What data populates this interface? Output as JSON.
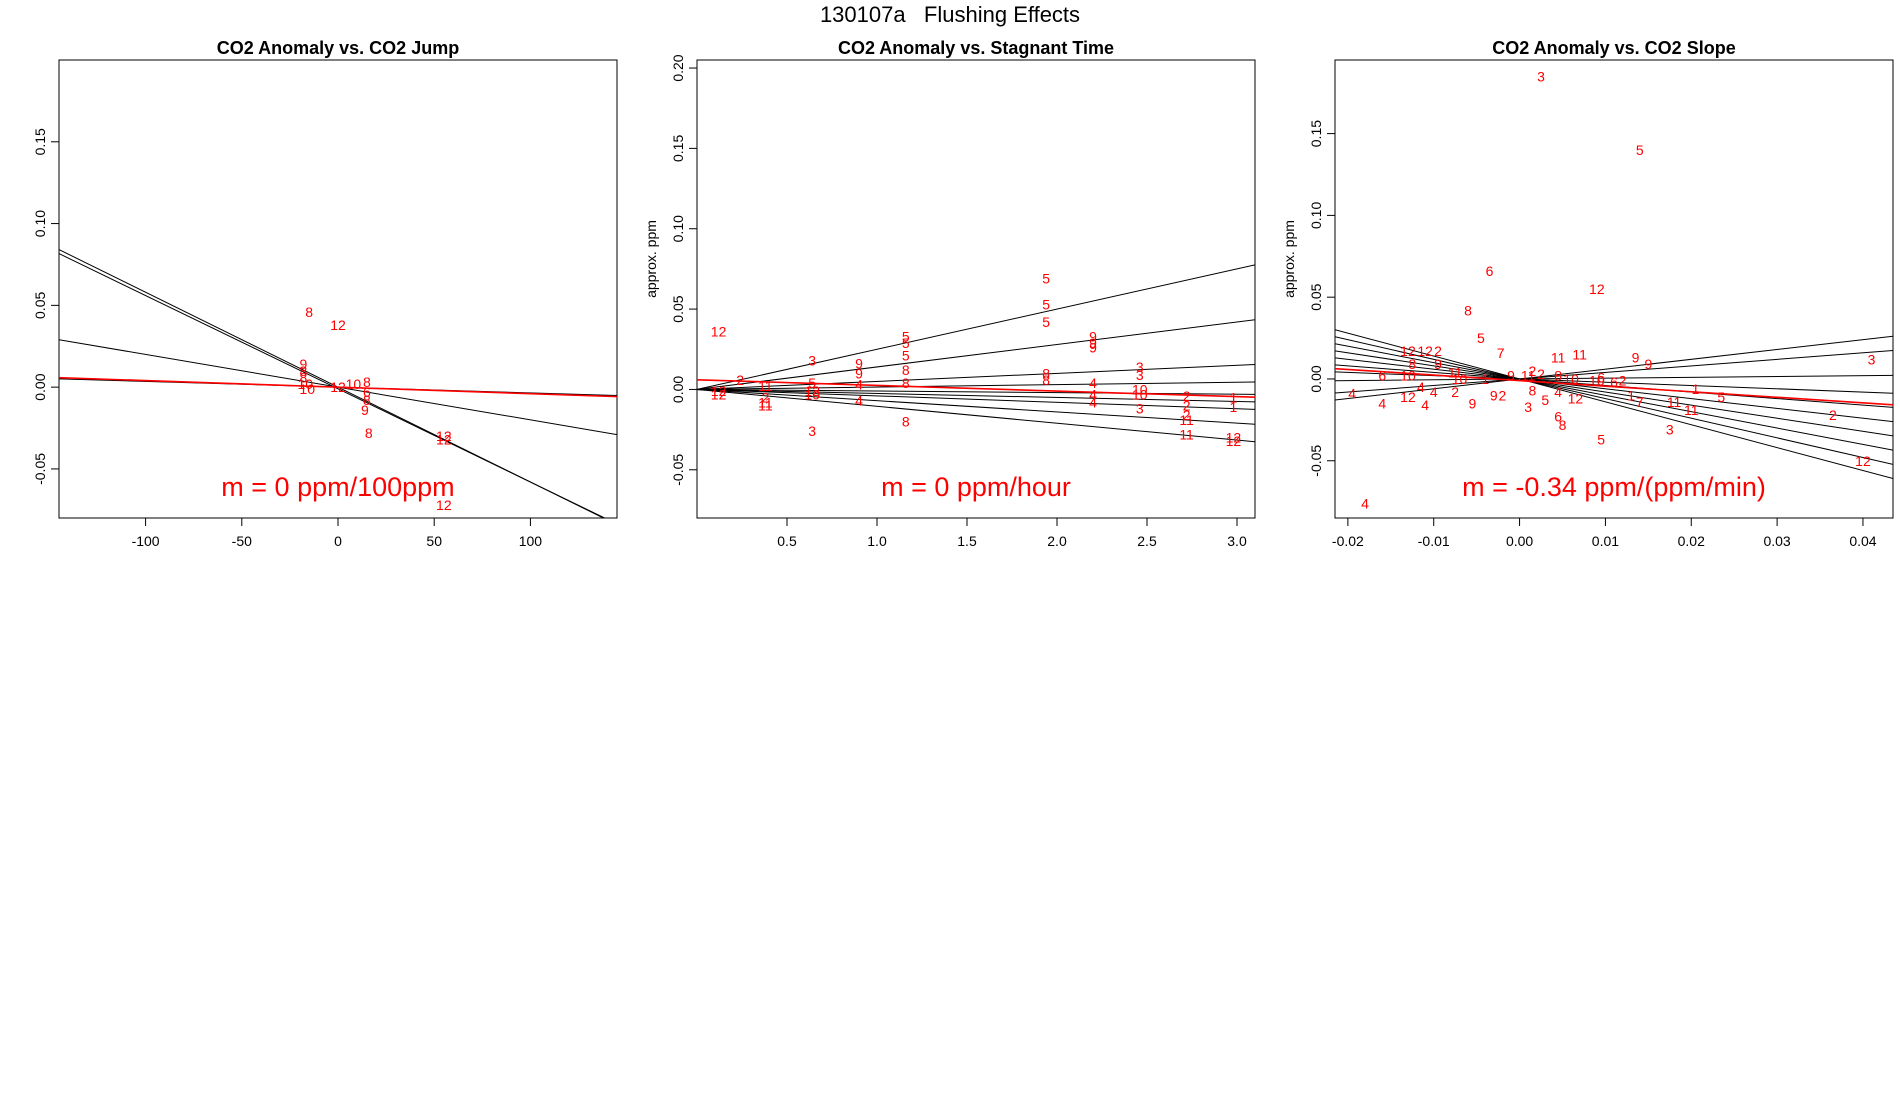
{
  "figure": {
    "title": "130107a   Flushing Effects"
  },
  "chart_data": [
    {
      "type": "scatter",
      "title": "CO2 Anomaly vs. CO2 Jump",
      "xlabel": "",
      "ylabel": "",
      "xlim": [
        -145,
        145
      ],
      "ylim": [
        -0.08,
        0.2
      ],
      "xticks": [
        -100,
        -50,
        0,
        50,
        100
      ],
      "yticks": [
        -0.05,
        0.0,
        0.05,
        0.1,
        0.15
      ],
      "annotation": "m = 0 ppm/100ppm",
      "lines": [
        {
          "slope": -0.00058,
          "intercept": 0.0,
          "color": "#000000"
        },
        {
          "slope": -0.00057,
          "intercept": -0.001,
          "color": "#000000"
        },
        {
          "slope": -0.0002,
          "intercept": 0.0,
          "color": "#000000"
        },
        {
          "slope": -3.5e-05,
          "intercept": 0.0,
          "color": "#000000"
        },
        {
          "slope": -4e-05,
          "intercept": 0.0,
          "color": "#ff0000"
        }
      ],
      "points": [
        {
          "x": -15,
          "y": 0.046,
          "label": "8"
        },
        {
          "x": 0,
          "y": 0.038,
          "label": "12"
        },
        {
          "x": -18,
          "y": 0.014,
          "label": "9"
        },
        {
          "x": -18,
          "y": 0.01,
          "label": "8"
        },
        {
          "x": -18,
          "y": 0.006,
          "label": "8"
        },
        {
          "x": -17,
          "y": 0.002,
          "label": "10"
        },
        {
          "x": -16,
          "y": -0.001,
          "label": "10"
        },
        {
          "x": 0,
          "y": 0.0,
          "label": "12"
        },
        {
          "x": 8,
          "y": 0.002,
          "label": "10"
        },
        {
          "x": 15,
          "y": 0.003,
          "label": "8"
        },
        {
          "x": 15,
          "y": -0.003,
          "label": "6"
        },
        {
          "x": 15,
          "y": -0.008,
          "label": "8"
        },
        {
          "x": 14,
          "y": -0.014,
          "label": "9"
        },
        {
          "x": 16,
          "y": -0.028,
          "label": "8"
        },
        {
          "x": 55,
          "y": -0.03,
          "label": "12"
        },
        {
          "x": 55,
          "y": -0.032,
          "label": "12"
        },
        {
          "x": 55,
          "y": -0.072,
          "label": "12"
        }
      ]
    },
    {
      "type": "scatter",
      "title": "CO2 Anomaly vs. Stagnant Time",
      "xlabel": "",
      "ylabel": "approx. ppm",
      "xlim": [
        0.0,
        3.1
      ],
      "ylim": [
        -0.08,
        0.205
      ],
      "xticks": [
        0.5,
        1.0,
        1.5,
        2.0,
        2.5,
        3.0
      ],
      "yticks": [
        -0.05,
        0.0,
        0.05,
        0.1,
        0.15,
        0.2
      ],
      "annotation": "m = 0 ppm/hour",
      "lines": [
        {
          "slope": 0.025,
          "intercept": 0.0,
          "color": "#000000"
        },
        {
          "slope": 0.014,
          "intercept": 0.0,
          "color": "#000000"
        },
        {
          "slope": 0.005,
          "intercept": 0.0,
          "color": "#000000"
        },
        {
          "slope": 0.0015,
          "intercept": 0.0,
          "color": "#000000"
        },
        {
          "slope": -0.001,
          "intercept": 0.0,
          "color": "#000000"
        },
        {
          "slope": -0.0025,
          "intercept": 0.0,
          "color": "#000000"
        },
        {
          "slope": -0.004,
          "intercept": 0.0,
          "color": "#000000"
        },
        {
          "slope": -0.007,
          "intercept": 0.0,
          "color": "#000000"
        },
        {
          "slope": -0.0105,
          "intercept": 0.0,
          "color": "#000000"
        },
        {
          "slope": -0.0035,
          "intercept": 0.006,
          "color": "#ff0000"
        }
      ],
      "points": [
        {
          "x": 0.12,
          "y": 0.036,
          "label": "12"
        },
        {
          "x": 0.12,
          "y": -0.001,
          "label": "12"
        },
        {
          "x": 0.12,
          "y": -0.003,
          "label": "12"
        },
        {
          "x": 0.24,
          "y": 0.006,
          "label": "2"
        },
        {
          "x": 0.38,
          "y": 0.002,
          "label": "11"
        },
        {
          "x": 0.38,
          "y": -0.005,
          "label": "2"
        },
        {
          "x": 0.38,
          "y": -0.008,
          "label": "11"
        },
        {
          "x": 0.38,
          "y": -0.01,
          "label": "11"
        },
        {
          "x": 0.64,
          "y": 0.018,
          "label": "3"
        },
        {
          "x": 0.64,
          "y": 0.004,
          "label": "5"
        },
        {
          "x": 0.64,
          "y": -0.001,
          "label": "12"
        },
        {
          "x": 0.64,
          "y": -0.003,
          "label": "10"
        },
        {
          "x": 0.64,
          "y": -0.026,
          "label": "3"
        },
        {
          "x": 0.9,
          "y": 0.016,
          "label": "9"
        },
        {
          "x": 0.9,
          "y": 0.01,
          "label": "9"
        },
        {
          "x": 0.9,
          "y": 0.003,
          "label": "4"
        },
        {
          "x": 0.9,
          "y": -0.007,
          "label": "4"
        },
        {
          "x": 1.16,
          "y": 0.033,
          "label": "5"
        },
        {
          "x": 1.16,
          "y": 0.029,
          "label": "5"
        },
        {
          "x": 1.16,
          "y": 0.021,
          "label": "5"
        },
        {
          "x": 1.16,
          "y": 0.012,
          "label": "8"
        },
        {
          "x": 1.16,
          "y": 0.004,
          "label": "8"
        },
        {
          "x": 1.16,
          "y": -0.02,
          "label": "8"
        },
        {
          "x": 1.94,
          "y": 0.069,
          "label": "5"
        },
        {
          "x": 1.94,
          "y": 0.053,
          "label": "5"
        },
        {
          "x": 1.94,
          "y": 0.042,
          "label": "5"
        },
        {
          "x": 1.94,
          "y": 0.01,
          "label": "8"
        },
        {
          "x": 1.94,
          "y": 0.006,
          "label": "8"
        },
        {
          "x": 2.2,
          "y": 0.033,
          "label": "9"
        },
        {
          "x": 2.2,
          "y": 0.029,
          "label": "9"
        },
        {
          "x": 2.2,
          "y": 0.026,
          "label": "9"
        },
        {
          "x": 2.2,
          "y": 0.004,
          "label": "4"
        },
        {
          "x": 2.2,
          "y": -0.003,
          "label": "4"
        },
        {
          "x": 2.2,
          "y": -0.008,
          "label": "4"
        },
        {
          "x": 2.46,
          "y": 0.014,
          "label": "3"
        },
        {
          "x": 2.46,
          "y": 0.009,
          "label": "3"
        },
        {
          "x": 2.46,
          "y": 0.0,
          "label": "10"
        },
        {
          "x": 2.46,
          "y": -0.003,
          "label": "10"
        },
        {
          "x": 2.46,
          "y": -0.012,
          "label": "3"
        },
        {
          "x": 2.72,
          "y": -0.004,
          "label": "2"
        },
        {
          "x": 2.72,
          "y": -0.01,
          "label": "2"
        },
        {
          "x": 2.72,
          "y": -0.016,
          "label": "2"
        },
        {
          "x": 2.72,
          "y": -0.019,
          "label": "11"
        },
        {
          "x": 2.72,
          "y": -0.028,
          "label": "11"
        },
        {
          "x": 2.98,
          "y": -0.005,
          "label": "1"
        },
        {
          "x": 2.98,
          "y": -0.011,
          "label": "1"
        },
        {
          "x": 2.98,
          "y": -0.03,
          "label": "12"
        },
        {
          "x": 2.98,
          "y": -0.032,
          "label": "12"
        }
      ]
    },
    {
      "type": "scatter",
      "title": "CO2 Anomaly vs. CO2 Slope",
      "xlabel": "",
      "ylabel": "approx. ppm",
      "xlim": [
        -0.0215,
        0.0435
      ],
      "ylim": [
        -0.085,
        0.195
      ],
      "xticks": [
        -0.02,
        -0.01,
        0.0,
        0.01,
        0.02,
        0.03,
        0.04
      ],
      "yticks": [
        -0.05,
        0.0,
        0.05,
        0.1,
        0.15
      ],
      "annotation": "m = -0.34 ppm/(ppm/min)",
      "lines": [
        {
          "slope": -0.8,
          "intercept": 0.0,
          "color": "#000000"
        },
        {
          "slope": -1.2,
          "intercept": 0.0,
          "color": "#000000"
        },
        {
          "slope": 0.6,
          "intercept": 0.0,
          "color": "#000000"
        },
        {
          "slope": -0.2,
          "intercept": 0.0,
          "color": "#000000"
        },
        {
          "slope": -1.4,
          "intercept": 0.0,
          "color": "#000000"
        },
        {
          "slope": 0.4,
          "intercept": 0.0,
          "color": "#000000"
        },
        {
          "slope": -0.6,
          "intercept": 0.0,
          "color": "#000000"
        },
        {
          "slope": 0.05,
          "intercept": 0.0,
          "color": "#000000"
        },
        {
          "slope": -1.0,
          "intercept": 0.0,
          "color": "#000000"
        },
        {
          "slope": -0.4,
          "intercept": 0.0,
          "color": "#000000"
        },
        {
          "slope": -0.34,
          "intercept": -0.001,
          "color": "#ff0000"
        }
      ],
      "points": [
        {
          "x": 0.0025,
          "y": 0.185,
          "label": "3"
        },
        {
          "x": 0.014,
          "y": 0.14,
          "label": "5"
        },
        {
          "x": -0.0035,
          "y": 0.066,
          "label": "6"
        },
        {
          "x": 0.009,
          "y": 0.055,
          "label": "12"
        },
        {
          "x": -0.006,
          "y": 0.042,
          "label": "8"
        },
        {
          "x": -0.0045,
          "y": 0.025,
          "label": "5"
        },
        {
          "x": -0.0022,
          "y": 0.016,
          "label": "7"
        },
        {
          "x": -0.013,
          "y": 0.017,
          "label": "12"
        },
        {
          "x": -0.011,
          "y": 0.017,
          "label": "12"
        },
        {
          "x": -0.0095,
          "y": 0.017,
          "label": "2"
        },
        {
          "x": 0.0045,
          "y": 0.013,
          "label": "11"
        },
        {
          "x": 0.007,
          "y": 0.015,
          "label": "11"
        },
        {
          "x": 0.0135,
          "y": 0.013,
          "label": "9"
        },
        {
          "x": 0.015,
          "y": 0.009,
          "label": "9"
        },
        {
          "x": 0.041,
          "y": 0.012,
          "label": "3"
        },
        {
          "x": -0.0125,
          "y": 0.009,
          "label": "8"
        },
        {
          "x": -0.0095,
          "y": 0.009,
          "label": "9"
        },
        {
          "x": -0.016,
          "y": 0.002,
          "label": "6"
        },
        {
          "x": -0.013,
          "y": 0.002,
          "label": "10"
        },
        {
          "x": -0.0075,
          "y": 0.004,
          "label": "11"
        },
        {
          "x": -0.007,
          "y": 0.0,
          "label": "10"
        },
        {
          "x": -0.004,
          "y": 0.0,
          "label": "1"
        },
        {
          "x": -0.001,
          "y": 0.002,
          "label": "9"
        },
        {
          "x": 0.001,
          "y": 0.002,
          "label": "11"
        },
        {
          "x": 0.0015,
          "y": 0.005,
          "label": "2"
        },
        {
          "x": 0.0025,
          "y": 0.003,
          "label": "2"
        },
        {
          "x": 0.0045,
          "y": 0.002,
          "label": "8"
        },
        {
          "x": 0.006,
          "y": 0.0,
          "label": "10"
        },
        {
          "x": 0.009,
          "y": -0.001,
          "label": "10"
        },
        {
          "x": 0.0095,
          "y": 0.001,
          "label": "6"
        },
        {
          "x": 0.011,
          "y": -0.002,
          "label": "6"
        },
        {
          "x": 0.012,
          "y": -0.001,
          "label": "2"
        },
        {
          "x": -0.0195,
          "y": -0.009,
          "label": "4"
        },
        {
          "x": -0.016,
          "y": -0.015,
          "label": "4"
        },
        {
          "x": -0.013,
          "y": -0.011,
          "label": "12"
        },
        {
          "x": -0.0115,
          "y": -0.005,
          "label": "4"
        },
        {
          "x": -0.01,
          "y": -0.008,
          "label": "4"
        },
        {
          "x": -0.011,
          "y": -0.016,
          "label": "4"
        },
        {
          "x": -0.0075,
          "y": -0.008,
          "label": "2"
        },
        {
          "x": -0.0055,
          "y": -0.015,
          "label": "9"
        },
        {
          "x": -0.003,
          "y": -0.01,
          "label": "9"
        },
        {
          "x": -0.002,
          "y": -0.01,
          "label": "2"
        },
        {
          "x": 0.001,
          "y": -0.017,
          "label": "3"
        },
        {
          "x": 0.0015,
          "y": -0.007,
          "label": "8"
        },
        {
          "x": 0.003,
          "y": -0.013,
          "label": "5"
        },
        {
          "x": 0.0045,
          "y": -0.008,
          "label": "4"
        },
        {
          "x": 0.0045,
          "y": -0.023,
          "label": "6"
        },
        {
          "x": 0.005,
          "y": -0.028,
          "label": "8"
        },
        {
          "x": 0.0065,
          "y": -0.012,
          "label": "12"
        },
        {
          "x": 0.0095,
          "y": -0.037,
          "label": "5"
        },
        {
          "x": 0.013,
          "y": -0.01,
          "label": "1"
        },
        {
          "x": 0.014,
          "y": -0.014,
          "label": "7"
        },
        {
          "x": 0.018,
          "y": -0.014,
          "label": "11"
        },
        {
          "x": 0.02,
          "y": -0.019,
          "label": "11"
        },
        {
          "x": 0.0205,
          "y": -0.006,
          "label": "1"
        },
        {
          "x": 0.0235,
          "y": -0.011,
          "label": "5"
        },
        {
          "x": 0.0175,
          "y": -0.031,
          "label": "3"
        },
        {
          "x": 0.0365,
          "y": -0.022,
          "label": "2"
        },
        {
          "x": 0.04,
          "y": -0.05,
          "label": "12"
        },
        {
          "x": -0.018,
          "y": -0.076,
          "label": "4"
        }
      ]
    }
  ]
}
